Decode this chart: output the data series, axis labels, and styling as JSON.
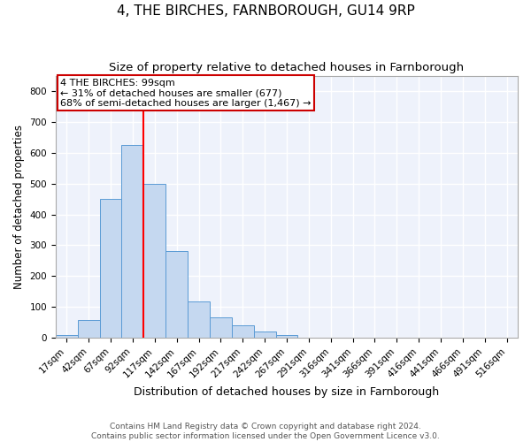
{
  "title": "4, THE BIRCHES, FARNBOROUGH, GU14 9RP",
  "subtitle": "Size of property relative to detached houses in Farnborough",
  "xlabel": "Distribution of detached houses by size in Farnborough",
  "ylabel": "Number of detached properties",
  "bar_labels": [
    "17sqm",
    "42sqm",
    "67sqm",
    "92sqm",
    "117sqm",
    "142sqm",
    "167sqm",
    "192sqm",
    "217sqm",
    "242sqm",
    "267sqm",
    "291sqm",
    "316sqm",
    "341sqm",
    "366sqm",
    "391sqm",
    "416sqm",
    "441sqm",
    "466sqm",
    "491sqm",
    "516sqm"
  ],
  "bar_values": [
    10,
    58,
    450,
    625,
    500,
    280,
    118,
    65,
    40,
    20,
    10,
    0,
    0,
    0,
    0,
    0,
    0,
    0,
    0,
    0,
    0
  ],
  "bar_color": "#c5d8f0",
  "bar_edge_color": "#5b9bd5",
  "property_line_x": 3,
  "property_line_color": "#ff0000",
  "annotation_text": "4 THE BIRCHES: 99sqm\n← 31% of detached houses are smaller (677)\n68% of semi-detached houses are larger (1,467) →",
  "annotation_box_color": "#cc0000",
  "ylim": [
    0,
    850
  ],
  "yticks": [
    0,
    100,
    200,
    300,
    400,
    500,
    600,
    700,
    800
  ],
  "footer_text": "Contains HM Land Registry data © Crown copyright and database right 2024.\nContains public sector information licensed under the Open Government Licence v3.0.",
  "background_color": "#eef2fb",
  "grid_color": "#ffffff",
  "title_fontsize": 11,
  "subtitle_fontsize": 9.5,
  "axis_label_fontsize": 8.5,
  "tick_fontsize": 7.5,
  "annotation_fontsize": 8,
  "footer_fontsize": 6.5
}
